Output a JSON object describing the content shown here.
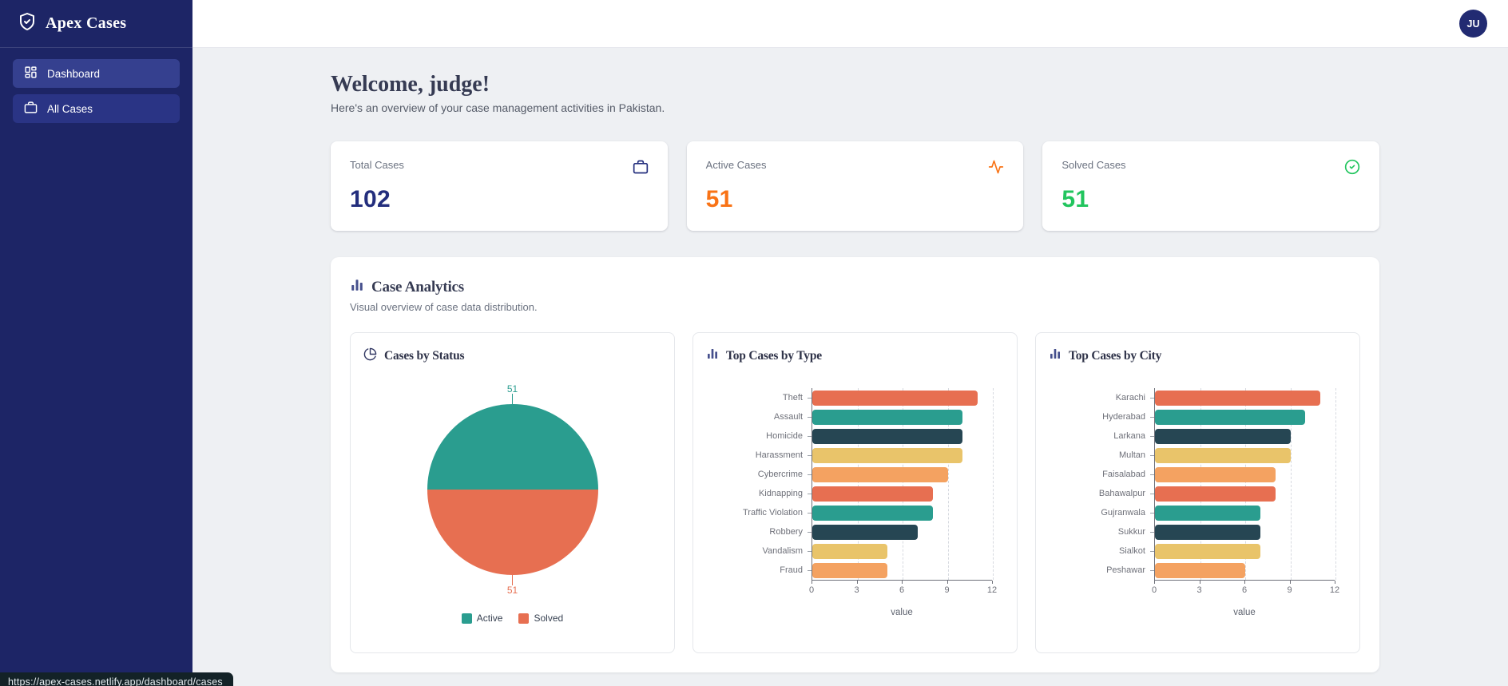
{
  "app": {
    "name": "Apex Cases",
    "logo_icon": "shield-check-icon"
  },
  "sidebar": {
    "items": [
      {
        "label": "Dashboard",
        "icon": "layout-dashboard-icon",
        "active": true
      },
      {
        "label": "All Cases",
        "icon": "briefcase-icon",
        "active": false
      }
    ]
  },
  "header": {
    "avatar_initials": "JU"
  },
  "welcome": {
    "title": "Welcome, judge!",
    "subtitle": "Here's an overview of your case management activities in Pakistan."
  },
  "stats": [
    {
      "label": "Total Cases",
      "value": "102",
      "icon": "briefcase-icon",
      "color": "#232e7d"
    },
    {
      "label": "Active Cases",
      "value": "51",
      "icon": "activity-icon",
      "color": "#f97316"
    },
    {
      "label": "Solved Cases",
      "value": "51",
      "icon": "check-circle-icon",
      "color": "#22c55e"
    }
  ],
  "analytics": {
    "icon": "bar-chart-icon",
    "title": "Case Analytics",
    "subtitle": "Visual overview of case data distribution."
  },
  "chart_data": [
    {
      "type": "pie",
      "title": "Cases by Status",
      "icon": "pie-chart-icon",
      "labels": [
        "Active",
        "Solved"
      ],
      "values": [
        51,
        51
      ],
      "colors": [
        "#2a9d8f",
        "#e76f51"
      ],
      "legend_position": "bottom"
    },
    {
      "type": "bar",
      "orientation": "horizontal",
      "title": "Top Cases by Type",
      "icon": "bar-chart-icon",
      "categories": [
        "Theft",
        "Assault",
        "Homicide",
        "Harassment",
        "Cybercrime",
        "Kidnapping",
        "Traffic Violation",
        "Robbery",
        "Vandalism",
        "Fraud"
      ],
      "values": [
        11,
        10,
        10,
        10,
        9,
        8,
        8,
        7,
        5,
        5
      ],
      "xlabel": "value",
      "xlim": [
        0,
        12
      ],
      "xticks": [
        0,
        3,
        6,
        9,
        12
      ],
      "grid": "dashed-vertical",
      "palette": [
        "#e76f51",
        "#2a9d8f",
        "#264653",
        "#e9c46a",
        "#f4a261"
      ]
    },
    {
      "type": "bar",
      "orientation": "horizontal",
      "title": "Top Cases by City",
      "icon": "bar-chart-icon",
      "categories": [
        "Karachi",
        "Hyderabad",
        "Larkana",
        "Multan",
        "Faisalabad",
        "Bahawalpur",
        "Gujranwala",
        "Sukkur",
        "Sialkot",
        "Peshawar"
      ],
      "values": [
        11,
        10,
        9,
        9,
        8,
        8,
        7,
        7,
        7,
        6
      ],
      "xlabel": "value",
      "xlim": [
        0,
        12
      ],
      "xticks": [
        0,
        3,
        6,
        9,
        12
      ],
      "grid": "dashed-vertical",
      "palette": [
        "#e76f51",
        "#2a9d8f",
        "#264653",
        "#e9c46a",
        "#f4a261"
      ]
    }
  ],
  "status_bar": {
    "url": "https://apex-cases.netlify.app/dashboard/cases"
  }
}
